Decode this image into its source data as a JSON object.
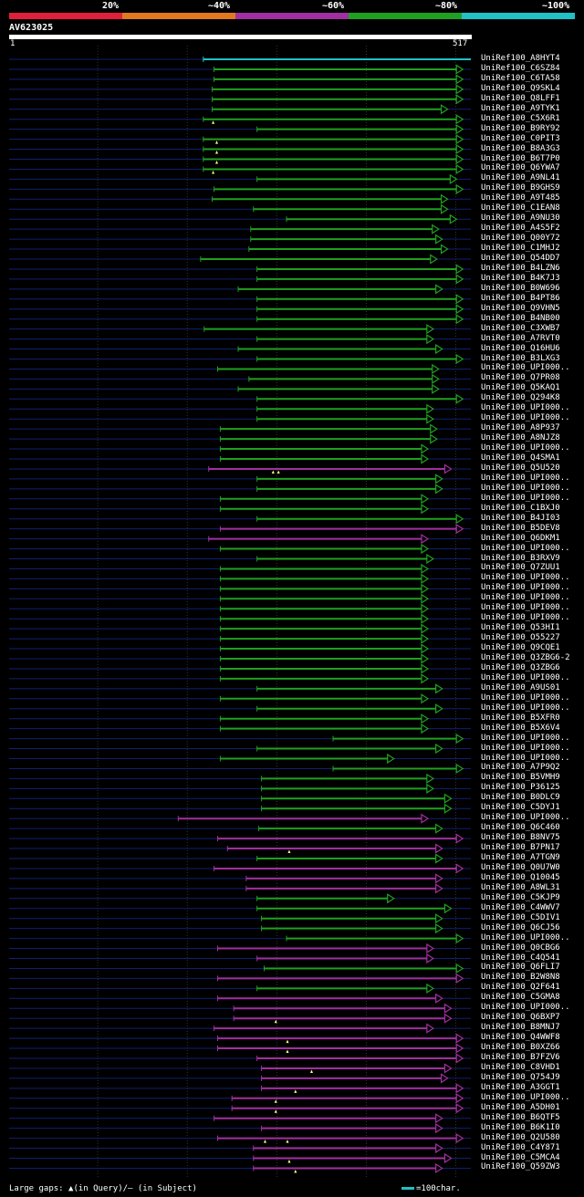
{
  "legend": {
    "segments": [
      {
        "label": "20%",
        "color": "#e0203a"
      },
      {
        "label": "~40%",
        "color": "#e07820"
      },
      {
        "label": "~60%",
        "color": "#a030a0"
      },
      {
        "label": "~80%",
        "color": "#20a020"
      },
      {
        "label": "~100%",
        "color": "#20c0c8"
      }
    ]
  },
  "query": {
    "name": "AV623025",
    "start_label": "1",
    "end_label": "517",
    "length": 517
  },
  "hits": [
    {
      "name": "UniRef100_A8HYT4",
      "s": 218,
      "e": 517,
      "c": "#20c0c8",
      "a": "none",
      "g": []
    },
    {
      "name": "UniRef100_C6SZ84",
      "s": 230,
      "e": 507,
      "c": "#20a020",
      "a": "end",
      "g": []
    },
    {
      "name": "UniRef100_C6TA58",
      "s": 230,
      "e": 507,
      "c": "#20a020",
      "a": "end",
      "g": []
    },
    {
      "name": "UniRef100_Q9SKL4",
      "s": 228,
      "e": 507,
      "c": "#20a020",
      "a": "end",
      "g": []
    },
    {
      "name": "UniRef100_Q8LFF1",
      "s": 228,
      "e": 507,
      "c": "#20a020",
      "a": "end",
      "g": []
    },
    {
      "name": "UniRef100_A9TYK1",
      "s": 228,
      "e": 490,
      "c": "#20a020",
      "a": "end",
      "g": []
    },
    {
      "name": "UniRef100_C5X6R1",
      "s": 218,
      "e": 507,
      "c": "#20a020",
      "a": "end",
      "g": [
        229
      ]
    },
    {
      "name": "UniRef100_B9RY92",
      "s": 278,
      "e": 507,
      "c": "#20a020",
      "a": "end",
      "g": []
    },
    {
      "name": "UniRef100_C0PIT3",
      "s": 218,
      "e": 507,
      "c": "#20a020",
      "a": "end",
      "g": [
        233
      ]
    },
    {
      "name": "UniRef100_B8A3G3",
      "s": 218,
      "e": 507,
      "c": "#20a020",
      "a": "end",
      "g": [
        233
      ]
    },
    {
      "name": "UniRef100_B6T7P0",
      "s": 218,
      "e": 507,
      "c": "#20a020",
      "a": "end",
      "g": [
        233
      ]
    },
    {
      "name": "UniRef100_Q6YWA7",
      "s": 218,
      "e": 507,
      "c": "#20a020",
      "a": "end",
      "g": [
        229
      ]
    },
    {
      "name": "UniRef100_A9NL41",
      "s": 278,
      "e": 500,
      "c": "#20a020",
      "a": "end",
      "g": []
    },
    {
      "name": "UniRef100_B9GHS9",
      "s": 230,
      "e": 507,
      "c": "#20a020",
      "a": "end",
      "g": []
    },
    {
      "name": "UniRef100_A9T485",
      "s": 228,
      "e": 490,
      "c": "#20a020",
      "a": "end",
      "g": []
    },
    {
      "name": "UniRef100_C1EAN8",
      "s": 274,
      "e": 490,
      "c": "#20a020",
      "a": "end",
      "g": []
    },
    {
      "name": "UniRef100_A9NU30",
      "s": 311,
      "e": 500,
      "c": "#20a020",
      "a": "end",
      "g": []
    },
    {
      "name": "UniRef100_A4S5F2",
      "s": 271,
      "e": 480,
      "c": "#20a020",
      "a": "end",
      "g": []
    },
    {
      "name": "UniRef100_Q00Y72",
      "s": 271,
      "e": 484,
      "c": "#20a020",
      "a": "end",
      "g": []
    },
    {
      "name": "UniRef100_C1MHJ2",
      "s": 269,
      "e": 490,
      "c": "#20a020",
      "a": "end",
      "g": []
    },
    {
      "name": "UniRef100_Q54DD7",
      "s": 215,
      "e": 478,
      "c": "#20a020",
      "a": "end",
      "g": []
    },
    {
      "name": "UniRef100_B4LZN6",
      "s": 278,
      "e": 507,
      "c": "#20a020",
      "a": "end",
      "g": []
    },
    {
      "name": "UniRef100_B4K7J3",
      "s": 278,
      "e": 507,
      "c": "#20a020",
      "a": "end",
      "g": []
    },
    {
      "name": "UniRef100_B0W696",
      "s": 257,
      "e": 484,
      "c": "#20a020",
      "a": "end",
      "g": []
    },
    {
      "name": "UniRef100_B4PT86",
      "s": 278,
      "e": 507,
      "c": "#20a020",
      "a": "end",
      "g": []
    },
    {
      "name": "UniRef100_Q9VHN5",
      "s": 278,
      "e": 507,
      "c": "#20a020",
      "a": "end",
      "g": []
    },
    {
      "name": "UniRef100_B4NB00",
      "s": 278,
      "e": 507,
      "c": "#20a020",
      "a": "end",
      "g": []
    },
    {
      "name": "UniRef100_C3XWB7",
      "s": 219,
      "e": 474,
      "c": "#20a020",
      "a": "end",
      "g": []
    },
    {
      "name": "UniRef100_A7RVT0",
      "s": 278,
      "e": 474,
      "c": "#20a020",
      "a": "end",
      "g": []
    },
    {
      "name": "UniRef100_Q16HU6",
      "s": 257,
      "e": 484,
      "c": "#20a020",
      "a": "end",
      "g": []
    },
    {
      "name": "UniRef100_B3LXG3",
      "s": 278,
      "e": 507,
      "c": "#20a020",
      "a": "end",
      "g": []
    },
    {
      "name": "UniRef100_UPI000..",
      "s": 234,
      "e": 480,
      "c": "#20a020",
      "a": "end",
      "g": []
    },
    {
      "name": "UniRef100_Q7PR08",
      "s": 269,
      "e": 480,
      "c": "#20a020",
      "a": "end",
      "g": []
    },
    {
      "name": "UniRef100_Q5KAQ1",
      "s": 257,
      "e": 480,
      "c": "#20a020",
      "a": "end",
      "g": []
    },
    {
      "name": "UniRef100_Q294K8",
      "s": 278,
      "e": 507,
      "c": "#20a020",
      "a": "end",
      "g": []
    },
    {
      "name": "UniRef100_UPI000..",
      "s": 278,
      "e": 474,
      "c": "#20a020",
      "a": "end",
      "g": []
    },
    {
      "name": "UniRef100_UPI000..",
      "s": 278,
      "e": 474,
      "c": "#20a020",
      "a": "end",
      "g": []
    },
    {
      "name": "UniRef100_A8P937",
      "s": 237,
      "e": 478,
      "c": "#20a020",
      "a": "end",
      "g": []
    },
    {
      "name": "UniRef100_A8NJZ8",
      "s": 237,
      "e": 478,
      "c": "#20a020",
      "a": "end",
      "g": []
    },
    {
      "name": "UniRef100_UPI000..",
      "s": 237,
      "e": 468,
      "c": "#20a020",
      "a": "end",
      "g": []
    },
    {
      "name": "UniRef100_Q4SMA1",
      "s": 237,
      "e": 468,
      "c": "#20a020",
      "a": "end",
      "g": []
    },
    {
      "name": "UniRef100_Q5U520",
      "s": 224,
      "e": 494,
      "c": "#a030a0",
      "a": "end",
      "g": [
        296,
        302
      ]
    },
    {
      "name": "UniRef100_UPI000..",
      "s": 278,
      "e": 484,
      "c": "#20a020",
      "a": "end",
      "g": []
    },
    {
      "name": "UniRef100_UPI000..",
      "s": 278,
      "e": 484,
      "c": "#20a020",
      "a": "end",
      "g": []
    },
    {
      "name": "UniRef100_UPI000..",
      "s": 237,
      "e": 468,
      "c": "#20a020",
      "a": "end",
      "g": []
    },
    {
      "name": "UniRef100_C1BXJ0",
      "s": 237,
      "e": 468,
      "c": "#20a020",
      "a": "end",
      "g": []
    },
    {
      "name": "UniRef100_B4JI03",
      "s": 278,
      "e": 507,
      "c": "#20a020",
      "a": "end",
      "g": []
    },
    {
      "name": "UniRef100_B5DEV8",
      "s": 237,
      "e": 507,
      "c": "#a030a0",
      "a": "end",
      "g": []
    },
    {
      "name": "UniRef100_Q6DKM1",
      "s": 224,
      "e": 468,
      "c": "#a030a0",
      "a": "end",
      "g": []
    },
    {
      "name": "UniRef100_UPI000..",
      "s": 237,
      "e": 468,
      "c": "#20a020",
      "a": "end",
      "g": []
    },
    {
      "name": "UniRef100_B3RXV9",
      "s": 278,
      "e": 474,
      "c": "#20a020",
      "a": "end",
      "g": []
    },
    {
      "name": "UniRef100_Q7ZUU1",
      "s": 237,
      "e": 468,
      "c": "#20a020",
      "a": "end",
      "g": []
    },
    {
      "name": "UniRef100_UPI000..",
      "s": 237,
      "e": 468,
      "c": "#20a020",
      "a": "end",
      "g": []
    },
    {
      "name": "UniRef100_UPI000..",
      "s": 237,
      "e": 468,
      "c": "#20a020",
      "a": "end",
      "g": []
    },
    {
      "name": "UniRef100_UPI000..",
      "s": 237,
      "e": 468,
      "c": "#20a020",
      "a": "end",
      "g": []
    },
    {
      "name": "UniRef100_UPI000..",
      "s": 237,
      "e": 468,
      "c": "#20a020",
      "a": "end",
      "g": []
    },
    {
      "name": "UniRef100_UPI000..",
      "s": 237,
      "e": 468,
      "c": "#20a020",
      "a": "end",
      "g": []
    },
    {
      "name": "UniRef100_Q53HI1",
      "s": 237,
      "e": 468,
      "c": "#20a020",
      "a": "end",
      "g": []
    },
    {
      "name": "UniRef100_O55227",
      "s": 237,
      "e": 468,
      "c": "#20a020",
      "a": "end",
      "g": []
    },
    {
      "name": "UniRef100_Q9CQE1",
      "s": 237,
      "e": 468,
      "c": "#20a020",
      "a": "end",
      "g": []
    },
    {
      "name": "UniRef100_Q3ZBG6-2",
      "s": 237,
      "e": 468,
      "c": "#20a020",
      "a": "end",
      "g": []
    },
    {
      "name": "UniRef100_Q3ZBG6",
      "s": 237,
      "e": 468,
      "c": "#20a020",
      "a": "end",
      "g": []
    },
    {
      "name": "UniRef100_UPI000..",
      "s": 237,
      "e": 468,
      "c": "#20a020",
      "a": "end",
      "g": []
    },
    {
      "name": "UniRef100_A9US01",
      "s": 278,
      "e": 484,
      "c": "#20a020",
      "a": "end",
      "g": []
    },
    {
      "name": "UniRef100_UPI000..",
      "s": 237,
      "e": 468,
      "c": "#20a020",
      "a": "end",
      "g": []
    },
    {
      "name": "UniRef100_UPI000..",
      "s": 278,
      "e": 484,
      "c": "#20a020",
      "a": "end",
      "g": []
    },
    {
      "name": "UniRef100_B5XFR0",
      "s": 237,
      "e": 468,
      "c": "#20a020",
      "a": "end",
      "g": []
    },
    {
      "name": "UniRef100_B5X6V4",
      "s": 237,
      "e": 468,
      "c": "#20a020",
      "a": "end",
      "g": []
    },
    {
      "name": "UniRef100_UPI000..",
      "s": 363,
      "e": 507,
      "c": "#20a020",
      "a": "end",
      "g": []
    },
    {
      "name": "UniRef100_UPI000..",
      "s": 278,
      "e": 484,
      "c": "#20a020",
      "a": "end",
      "g": []
    },
    {
      "name": "UniRef100_UPI000..",
      "s": 237,
      "e": 430,
      "c": "#20a020",
      "a": "end",
      "g": []
    },
    {
      "name": "UniRef100_A7P9Q2",
      "s": 363,
      "e": 507,
      "c": "#20a020",
      "a": "end",
      "g": []
    },
    {
      "name": "UniRef100_B5VMH9",
      "s": 283,
      "e": 474,
      "c": "#20a020",
      "a": "end",
      "g": []
    },
    {
      "name": "UniRef100_P36125",
      "s": 283,
      "e": 474,
      "c": "#20a020",
      "a": "end",
      "g": []
    },
    {
      "name": "UniRef100_B0DLC9",
      "s": 283,
      "e": 494,
      "c": "#20a020",
      "a": "end",
      "g": []
    },
    {
      "name": "UniRef100_C5DYJ1",
      "s": 283,
      "e": 494,
      "c": "#20a020",
      "a": "end",
      "g": []
    },
    {
      "name": "UniRef100_UPI000..",
      "s": 190,
      "e": 468,
      "c": "#a030a0",
      "a": "end",
      "g": []
    },
    {
      "name": "UniRef100_Q6C460",
      "s": 280,
      "e": 484,
      "c": "#20a020",
      "a": "end",
      "g": []
    },
    {
      "name": "UniRef100_B8NV75",
      "s": 234,
      "e": 507,
      "c": "#a030a0",
      "a": "end",
      "g": []
    },
    {
      "name": "UniRef100_B7PN17",
      "s": 245,
      "e": 484,
      "c": "#a030a0",
      "a": "end",
      "g": [
        314
      ]
    },
    {
      "name": "UniRef100_A7TGN9",
      "s": 278,
      "e": 484,
      "c": "#20a020",
      "a": "end",
      "g": []
    },
    {
      "name": "UniRef100_Q0U7W0",
      "s": 230,
      "e": 507,
      "c": "#a030a0",
      "a": "end",
      "g": []
    },
    {
      "name": "UniRef100_Q10045",
      "s": 266,
      "e": 484,
      "c": "#a030a0",
      "a": "end",
      "g": []
    },
    {
      "name": "UniRef100_A8WL31",
      "s": 266,
      "e": 484,
      "c": "#a030a0",
      "a": "end",
      "g": []
    },
    {
      "name": "UniRef100_C5KJP9",
      "s": 278,
      "e": 430,
      "c": "#20a020",
      "a": "end",
      "g": []
    },
    {
      "name": "UniRef100_C4WWV7",
      "s": 278,
      "e": 494,
      "c": "#20a020",
      "a": "end",
      "g": []
    },
    {
      "name": "UniRef100_C5DIV1",
      "s": 283,
      "e": 484,
      "c": "#20a020",
      "a": "end",
      "g": []
    },
    {
      "name": "UniRef100_Q6CJ56",
      "s": 283,
      "e": 484,
      "c": "#20a020",
      "a": "end",
      "g": []
    },
    {
      "name": "UniRef100_UPI000..",
      "s": 311,
      "e": 507,
      "c": "#20a020",
      "a": "end",
      "g": []
    },
    {
      "name": "UniRef100_Q0CBG6",
      "s": 234,
      "e": 474,
      "c": "#a030a0",
      "a": "end",
      "g": []
    },
    {
      "name": "UniRef100_C4Q541",
      "s": 278,
      "e": 474,
      "c": "#a030a0",
      "a": "end",
      "g": []
    },
    {
      "name": "UniRef100_Q6FLI7",
      "s": 286,
      "e": 507,
      "c": "#20a020",
      "a": "end",
      "g": []
    },
    {
      "name": "UniRef100_B2W8N8",
      "s": 234,
      "e": 507,
      "c": "#a030a0",
      "a": "end",
      "g": []
    },
    {
      "name": "UniRef100_Q2F641",
      "s": 278,
      "e": 474,
      "c": "#20a020",
      "a": "end",
      "g": []
    },
    {
      "name": "UniRef100_C5GMA8",
      "s": 234,
      "e": 484,
      "c": "#a030a0",
      "a": "end",
      "g": []
    },
    {
      "name": "UniRef100_UPI000..",
      "s": 252,
      "e": 494,
      "c": "#a030a0",
      "a": "end",
      "g": []
    },
    {
      "name": "UniRef100_Q6BXP7",
      "s": 252,
      "e": 494,
      "c": "#a030a0",
      "a": "end",
      "g": [
        299
      ]
    },
    {
      "name": "UniRef100_B8MNJ7",
      "s": 230,
      "e": 474,
      "c": "#a030a0",
      "a": "end",
      "g": []
    },
    {
      "name": "UniRef100_Q4WWF8",
      "s": 234,
      "e": 507,
      "c": "#a030a0",
      "a": "end",
      "g": [
        312
      ]
    },
    {
      "name": "UniRef100_B0XZ66",
      "s": 234,
      "e": 507,
      "c": "#a030a0",
      "a": "end",
      "g": [
        312
      ]
    },
    {
      "name": "UniRef100_B7FZV6",
      "s": 278,
      "e": 507,
      "c": "#a030a0",
      "a": "end",
      "g": []
    },
    {
      "name": "UniRef100_C8VHD1",
      "s": 283,
      "e": 494,
      "c": "#a030a0",
      "a": "end",
      "g": [
        339
      ]
    },
    {
      "name": "UniRef100_Q754J9",
      "s": 283,
      "e": 490,
      "c": "#a030a0",
      "a": "end",
      "g": []
    },
    {
      "name": "UniRef100_A3GGT1",
      "s": 283,
      "e": 507,
      "c": "#a030a0",
      "a": "end",
      "g": [
        321
      ]
    },
    {
      "name": "UniRef100_UPI000..",
      "s": 250,
      "e": 507,
      "c": "#a030a0",
      "a": "end",
      "g": [
        299
      ]
    },
    {
      "name": "UniRef100_A5DH01",
      "s": 250,
      "e": 507,
      "c": "#a030a0",
      "a": "end",
      "g": [
        299
      ]
    },
    {
      "name": "UniRef100_B6QTF5",
      "s": 230,
      "e": 484,
      "c": "#a030a0",
      "a": "end",
      "g": []
    },
    {
      "name": "UniRef100_B6K1I0",
      "s": 283,
      "e": 484,
      "c": "#a030a0",
      "a": "end",
      "g": []
    },
    {
      "name": "UniRef100_Q2U580",
      "s": 234,
      "e": 507,
      "c": "#a030a0",
      "a": "end",
      "g": [
        287,
        312
      ]
    },
    {
      "name": "UniRef100_C4Y871",
      "s": 274,
      "e": 484,
      "c": "#a030a0",
      "a": "end",
      "g": []
    },
    {
      "name": "UniRef100_C5MCA4",
      "s": 274,
      "e": 494,
      "c": "#a030a0",
      "a": "end",
      "g": [
        314
      ]
    },
    {
      "name": "UniRef100_Q59ZW3",
      "s": 274,
      "e": 484,
      "c": "#a030a0",
      "a": "end",
      "g": [
        321
      ]
    }
  ],
  "footer": {
    "gap_text": "Large gaps: ▲(in Query)/— (in Subject)",
    "scale_text": "=100char."
  },
  "colors": {
    "query_bar": "#ffffff",
    "backbone": "#102070",
    "gridline": "#555555",
    "gap_marker": "#ffff80"
  }
}
